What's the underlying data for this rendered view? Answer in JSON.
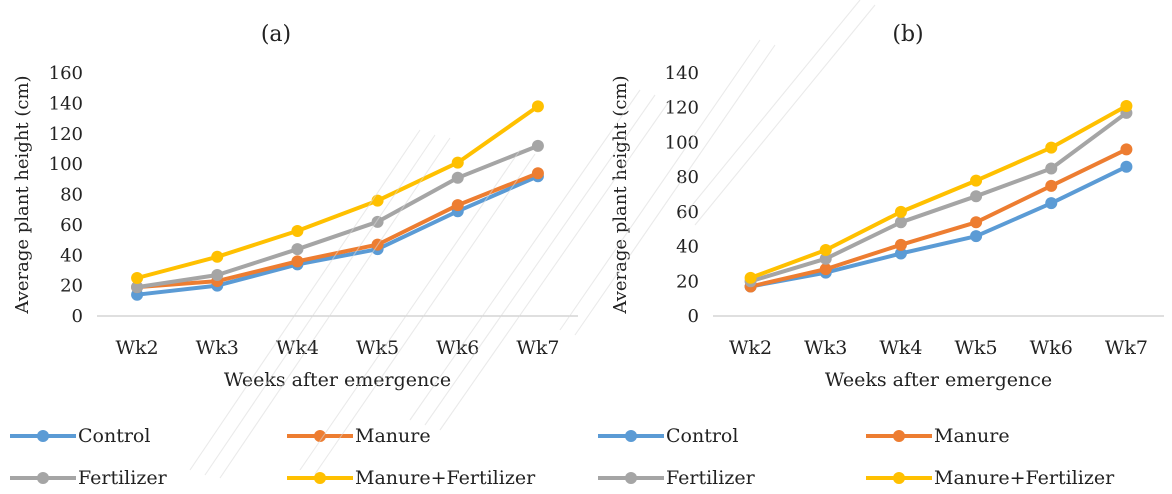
{
  "chart_data": [
    {
      "type": "line",
      "title": "(a)",
      "xlabel": "Weeks after emergence",
      "ylabel": "Average plant height (cm)",
      "categories": [
        "Wk2",
        "Wk3",
        "Wk4",
        "Wk5",
        "Wk6",
        "Wk7"
      ],
      "ylim": [
        0,
        160
      ],
      "yticks": [
        0,
        20,
        40,
        60,
        80,
        100,
        120,
        140,
        160
      ],
      "grid": false,
      "legend": "bottom",
      "series": [
        {
          "name": "Control",
          "color": "#5B9BD5",
          "values": [
            14,
            20,
            34,
            44,
            69,
            92
          ]
        },
        {
          "name": "Manure",
          "color": "#ED7D31",
          "values": [
            19,
            23,
            36,
            47,
            73,
            94
          ]
        },
        {
          "name": "Fertilizer",
          "color": "#A5A5A5",
          "values": [
            19,
            27,
            44,
            62,
            91,
            112
          ]
        },
        {
          "name": "Manure+Fertilizer",
          "color": "#FFC000",
          "values": [
            25,
            39,
            56,
            76,
            101,
            138
          ]
        }
      ]
    },
    {
      "type": "line",
      "title": "(b)",
      "xlabel": "Weeks after emergence",
      "ylabel": "Average plant height (cm)",
      "categories": [
        "Wk2",
        "Wk3",
        "Wk4",
        "Wk5",
        "Wk6",
        "Wk7"
      ],
      "ylim": [
        0,
        140
      ],
      "yticks": [
        0,
        20,
        40,
        60,
        80,
        100,
        120,
        140
      ],
      "grid": false,
      "legend": "bottom",
      "series": [
        {
          "name": "Control",
          "color": "#5B9BD5",
          "values": [
            17,
            25,
            36,
            46,
            65,
            86
          ]
        },
        {
          "name": "Manure",
          "color": "#ED7D31",
          "values": [
            17,
            27,
            41,
            54,
            75,
            96
          ]
        },
        {
          "name": "Fertilizer",
          "color": "#A5A5A5",
          "values": [
            20,
            33,
            54,
            69,
            85,
            117
          ]
        },
        {
          "name": "Manure+Fertilizer",
          "color": "#FFC000",
          "values": [
            22,
            38,
            60,
            78,
            97,
            121
          ]
        }
      ]
    }
  ]
}
